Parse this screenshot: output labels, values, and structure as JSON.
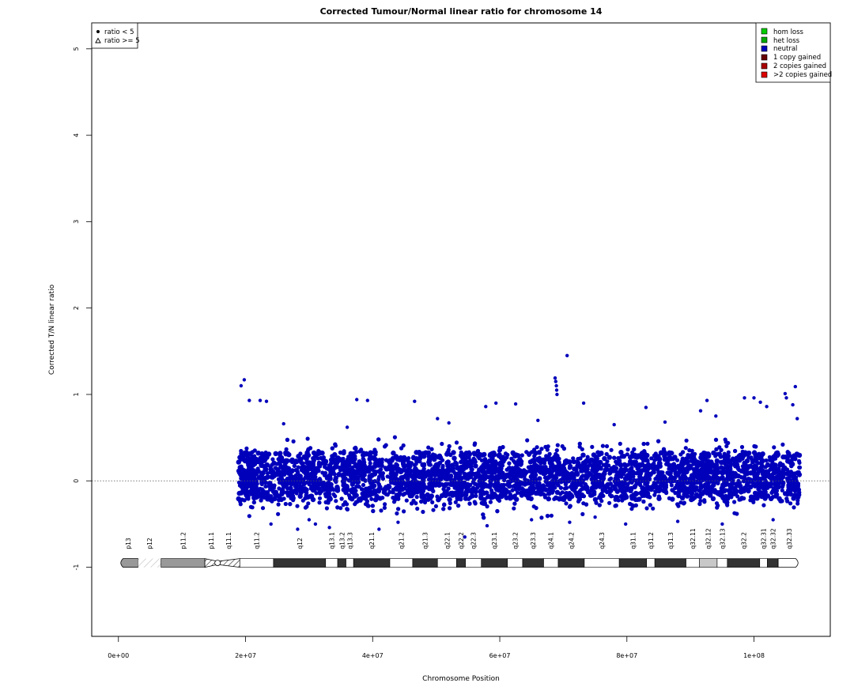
{
  "chart_data": {
    "type": "scatter",
    "title": "Corrected Tumour/Normal linear ratio for chromosome  14",
    "xlabel": "Chromosome Position",
    "ylabel": "Corrected T/N linear ratio",
    "xlim": [
      -4200000,
      112000000
    ],
    "ylim": [
      -1.8,
      5.3
    ],
    "x_ticks": [
      {
        "value": 0,
        "label": "0e+00"
      },
      {
        "value": 20000000,
        "label": "2e+07"
      },
      {
        "value": 40000000,
        "label": "4e+07"
      },
      {
        "value": 60000000,
        "label": "6e+07"
      },
      {
        "value": 80000000,
        "label": "8e+07"
      },
      {
        "value": 100000000,
        "label": "1e+08"
      }
    ],
    "y_ticks": [
      {
        "value": -1,
        "label": "-1"
      },
      {
        "value": 0,
        "label": "0"
      },
      {
        "value": 1,
        "label": "1"
      },
      {
        "value": 2,
        "label": "2"
      },
      {
        "value": 3,
        "label": "3"
      },
      {
        "value": 4,
        "label": "4"
      },
      {
        "value": 5,
        "label": "5"
      }
    ],
    "reference_line": 0,
    "shape_legend": {
      "position": "top-left",
      "items": [
        {
          "symbol": "dot",
          "label": "ratio < 5"
        },
        {
          "symbol": "triangle",
          "label": "ratio >= 5"
        }
      ]
    },
    "color_legend": {
      "position": "top-right",
      "items": [
        {
          "label": "hom loss",
          "color": "#00cc00"
        },
        {
          "label": "het loss",
          "color": "#00aa00"
        },
        {
          "label": "neutral",
          "color": "#0000bb"
        },
        {
          "label": "1 copy gained",
          "color": "#660000"
        },
        {
          "label": "2 copies gained",
          "color": "#aa0000"
        },
        {
          "label": ">2 copies gained",
          "color": "#dd0000"
        }
      ]
    },
    "series": [
      {
        "name": "neutral",
        "color": "#0000bb",
        "data_range_x": [
          18900000,
          107200000
        ],
        "bulk_y_range": [
          -0.35,
          0.45
        ],
        "points": [
          [
            19300000,
            1.1
          ],
          [
            19800000,
            1.17
          ],
          [
            20600000,
            0.93
          ],
          [
            22300000,
            0.93
          ],
          [
            23300000,
            0.92
          ],
          [
            28200000,
            -0.56
          ],
          [
            33200000,
            -0.54
          ],
          [
            37500000,
            0.94
          ],
          [
            39200000,
            0.93
          ],
          [
            41000000,
            -0.56
          ],
          [
            46600000,
            0.92
          ],
          [
            50200000,
            0.72
          ],
          [
            54500000,
            -0.65
          ],
          [
            57800000,
            0.86
          ],
          [
            59400000,
            0.9
          ],
          [
            62500000,
            0.89
          ],
          [
            68700000,
            1.19
          ],
          [
            68800000,
            1.15
          ],
          [
            68900000,
            1.1
          ],
          [
            68950000,
            1.05
          ],
          [
            69000000,
            1.0
          ],
          [
            70600000,
            1.45
          ],
          [
            73200000,
            0.9
          ],
          [
            79800000,
            -0.5
          ],
          [
            83000000,
            0.85
          ],
          [
            91600000,
            0.81
          ],
          [
            92600000,
            0.93
          ],
          [
            98500000,
            0.96
          ],
          [
            100000000,
            0.96
          ],
          [
            101000000,
            0.91
          ],
          [
            102000000,
            0.86
          ],
          [
            104900000,
            1.01
          ],
          [
            105100000,
            0.96
          ],
          [
            106100000,
            0.88
          ],
          [
            106500000,
            1.09
          ],
          [
            106800000,
            0.72
          ],
          [
            24000000,
            -0.5
          ],
          [
            30000000,
            -0.45
          ],
          [
            44000000,
            -0.48
          ],
          [
            65000000,
            -0.45
          ],
          [
            75000000,
            -0.42
          ],
          [
            88000000,
            -0.47
          ],
          [
            95000000,
            -0.5
          ],
          [
            103000000,
            -0.45
          ],
          [
            26000000,
            0.66
          ],
          [
            36000000,
            0.62
          ],
          [
            52000000,
            0.67
          ],
          [
            66000000,
            0.7
          ],
          [
            78000000,
            0.65
          ],
          [
            86000000,
            0.68
          ],
          [
            94000000,
            0.75
          ],
          [
            31000000,
            -0.5
          ],
          [
            58000000,
            -0.52
          ],
          [
            71000000,
            -0.48
          ]
        ]
      }
    ],
    "ideogram": {
      "y": -0.95,
      "bands": [
        {
          "name": "p13",
          "start": 0,
          "end": 3100000,
          "stain": "gvar"
        },
        {
          "name": "p12",
          "start": 3100000,
          "end": 6700000,
          "stain": "stalk"
        },
        {
          "name": "p11.2",
          "start": 6700000,
          "end": 13600000,
          "stain": "gvar"
        },
        {
          "name": "p11.1",
          "start": 13600000,
          "end": 15600000,
          "stain": "acen"
        },
        {
          "name": "q11.1",
          "start": 15600000,
          "end": 19100000,
          "stain": "acen"
        },
        {
          "name": "q11.2",
          "start": 19100000,
          "end": 24400000,
          "stain": "gneg"
        },
        {
          "name": "q12",
          "start": 24400000,
          "end": 32600000,
          "stain": "gpos100"
        },
        {
          "name": "q13.1",
          "start": 32600000,
          "end": 34500000,
          "stain": "gneg"
        },
        {
          "name": "q13.2",
          "start": 34500000,
          "end": 35800000,
          "stain": "gpos50"
        },
        {
          "name": "q13.3",
          "start": 35800000,
          "end": 37000000,
          "stain": "gneg"
        },
        {
          "name": "q21.1",
          "start": 37000000,
          "end": 42700000,
          "stain": "gpos100"
        },
        {
          "name": "q21.2",
          "start": 42700000,
          "end": 46300000,
          "stain": "gneg"
        },
        {
          "name": "q21.3",
          "start": 46300000,
          "end": 50200000,
          "stain": "gpos100"
        },
        {
          "name": "q22.1",
          "start": 50200000,
          "end": 53200000,
          "stain": "gneg"
        },
        {
          "name": "q22.2",
          "start": 53200000,
          "end": 54600000,
          "stain": "gpos50"
        },
        {
          "name": "q22.3",
          "start": 54600000,
          "end": 57100000,
          "stain": "gneg"
        },
        {
          "name": "q23.1",
          "start": 57100000,
          "end": 61200000,
          "stain": "gpos75"
        },
        {
          "name": "q23.2",
          "start": 61200000,
          "end": 63600000,
          "stain": "gneg"
        },
        {
          "name": "q23.3",
          "start": 63600000,
          "end": 66900000,
          "stain": "gpos50"
        },
        {
          "name": "q24.1",
          "start": 66900000,
          "end": 69200000,
          "stain": "gneg"
        },
        {
          "name": "q24.2",
          "start": 69200000,
          "end": 73300000,
          "stain": "gpos50"
        },
        {
          "name": "q24.3",
          "start": 73300000,
          "end": 78800000,
          "stain": "gneg"
        },
        {
          "name": "q31.1",
          "start": 78800000,
          "end": 83100000,
          "stain": "gpos100"
        },
        {
          "name": "q31.2",
          "start": 83100000,
          "end": 84400000,
          "stain": "gneg"
        },
        {
          "name": "q31.3",
          "start": 84400000,
          "end": 89300000,
          "stain": "gpos100"
        },
        {
          "name": "q32.11",
          "start": 89300000,
          "end": 91400000,
          "stain": "gneg"
        },
        {
          "name": "q32.12",
          "start": 91400000,
          "end": 94200000,
          "stain": "gpos25"
        },
        {
          "name": "q32.13",
          "start": 94200000,
          "end": 95800000,
          "stain": "gneg"
        },
        {
          "name": "q32.2",
          "start": 95800000,
          "end": 100900000,
          "stain": "gpos50"
        },
        {
          "name": "q32.31",
          "start": 100900000,
          "end": 102100000,
          "stain": "gneg"
        },
        {
          "name": "q32.32",
          "start": 102100000,
          "end": 103800000,
          "stain": "gpos50"
        },
        {
          "name": "q32.33",
          "start": 103800000,
          "end": 107300000,
          "stain": "gneg"
        }
      ]
    }
  }
}
